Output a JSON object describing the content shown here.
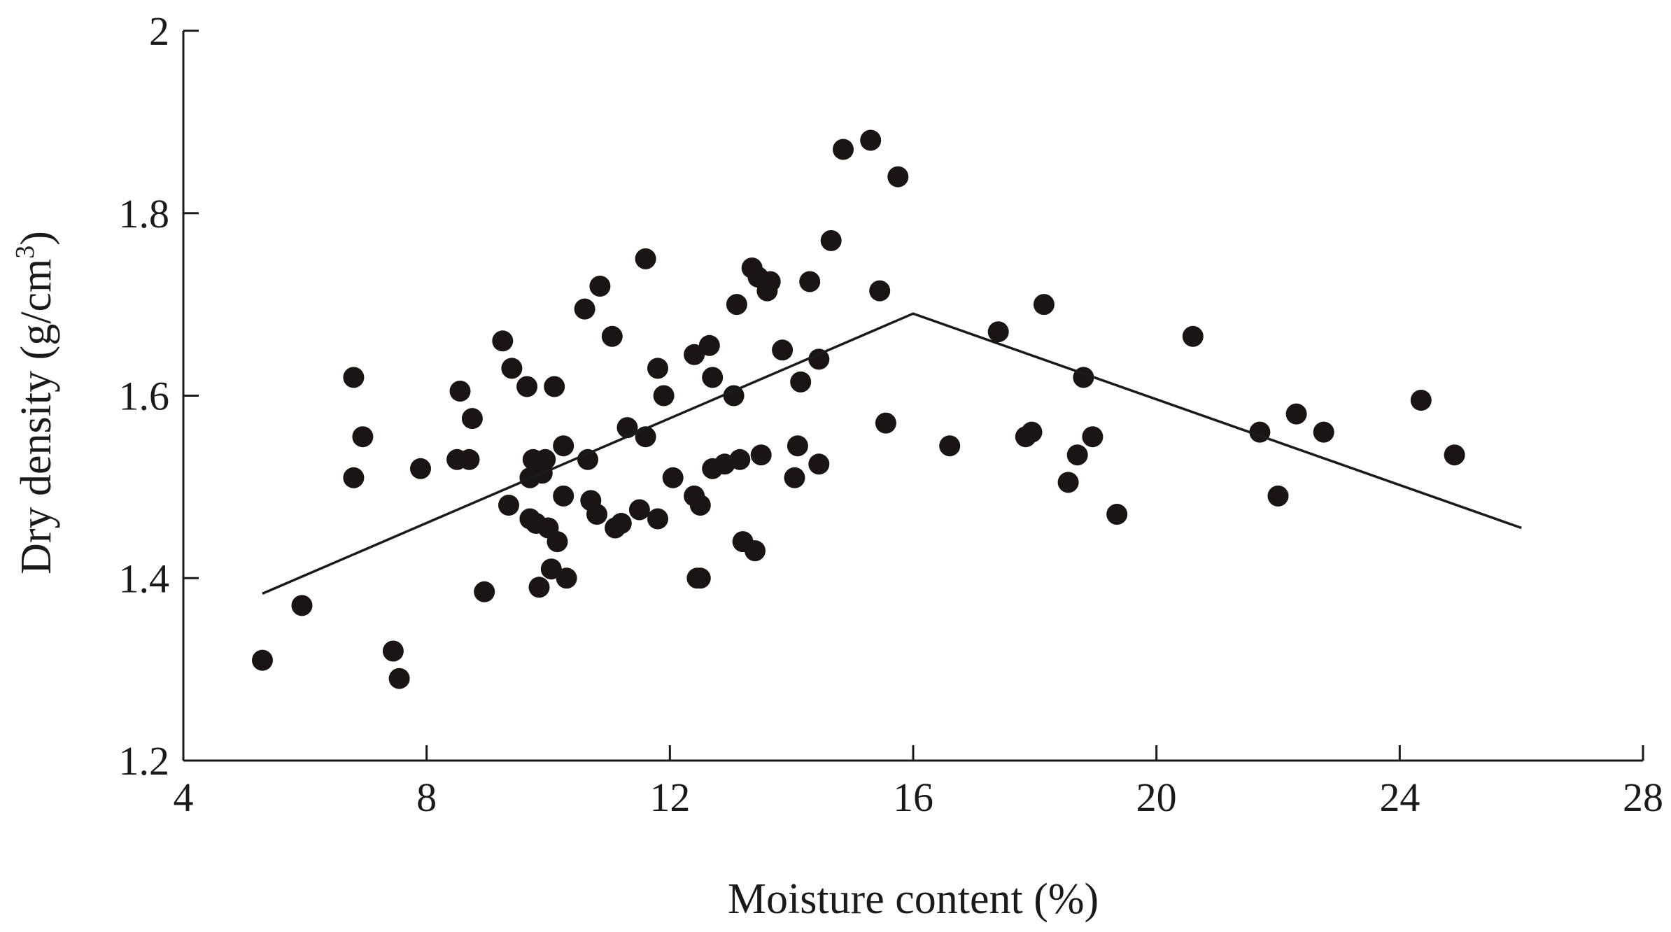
{
  "chart_data": {
    "type": "scatter",
    "xlabel": "Moisture content (%)",
    "ylabel": "Dry density (g/cm3)",
    "ylabel_main": "Dry density (g/cm",
    "ylabel_sup": "3",
    "ylabel_end": ")",
    "xlim": [
      4,
      28
    ],
    "ylim": [
      1.2,
      2.0
    ],
    "xticks": [
      4,
      8,
      12,
      16,
      20,
      24,
      28
    ],
    "yticks": [
      1.2,
      1.4,
      1.6,
      1.8,
      2.0
    ],
    "xtick_labels": [
      "4",
      "8",
      "12",
      "16",
      "20",
      "24",
      "28"
    ],
    "ytick_labels": [
      "1.2",
      "1.4",
      "1.6",
      "1.8",
      "2"
    ],
    "grid": false,
    "legend": "none",
    "marker_color": "#1a1513",
    "points": [
      [
        5.3,
        1.31
      ],
      [
        5.95,
        1.37
      ],
      [
        6.8,
        1.62
      ],
      [
        6.8,
        1.51
      ],
      [
        6.95,
        1.555
      ],
      [
        7.45,
        1.32
      ],
      [
        7.55,
        1.29
      ],
      [
        7.9,
        1.52
      ],
      [
        8.5,
        1.53
      ],
      [
        8.55,
        1.605
      ],
      [
        8.7,
        1.53
      ],
      [
        8.75,
        1.575
      ],
      [
        8.95,
        1.385
      ],
      [
        9.25,
        1.66
      ],
      [
        9.35,
        1.48
      ],
      [
        9.4,
        1.63
      ],
      [
        9.65,
        1.61
      ],
      [
        9.7,
        1.51
      ],
      [
        9.7,
        1.465
      ],
      [
        9.75,
        1.53
      ],
      [
        9.8,
        1.46
      ],
      [
        9.85,
        1.39
      ],
      [
        9.9,
        1.515
      ],
      [
        9.95,
        1.53
      ],
      [
        10.0,
        1.455
      ],
      [
        10.05,
        1.41
      ],
      [
        10.1,
        1.61
      ],
      [
        10.15,
        1.44
      ],
      [
        10.25,
        1.545
      ],
      [
        10.25,
        1.49
      ],
      [
        10.3,
        1.4
      ],
      [
        10.6,
        1.695
      ],
      [
        10.65,
        1.53
      ],
      [
        10.7,
        1.485
      ],
      [
        10.8,
        1.47
      ],
      [
        10.85,
        1.72
      ],
      [
        11.05,
        1.665
      ],
      [
        11.1,
        1.455
      ],
      [
        11.2,
        1.46
      ],
      [
        11.3,
        1.565
      ],
      [
        11.5,
        1.475
      ],
      [
        11.6,
        1.75
      ],
      [
        11.6,
        1.555
      ],
      [
        11.8,
        1.465
      ],
      [
        11.8,
        1.63
      ],
      [
        11.9,
        1.6
      ],
      [
        12.05,
        1.51
      ],
      [
        12.4,
        1.645
      ],
      [
        12.4,
        1.49
      ],
      [
        12.45,
        1.4
      ],
      [
        12.5,
        1.48
      ],
      [
        12.5,
        1.4
      ],
      [
        12.65,
        1.655
      ],
      [
        12.7,
        1.52
      ],
      [
        12.7,
        1.62
      ],
      [
        12.9,
        1.525
      ],
      [
        13.05,
        1.6
      ],
      [
        13.1,
        1.7
      ],
      [
        13.15,
        1.53
      ],
      [
        13.2,
        1.44
      ],
      [
        13.35,
        1.74
      ],
      [
        13.4,
        1.43
      ],
      [
        13.45,
        1.73
      ],
      [
        13.5,
        1.535
      ],
      [
        13.6,
        1.715
      ],
      [
        13.65,
        1.725
      ],
      [
        13.85,
        1.65
      ],
      [
        14.05,
        1.51
      ],
      [
        14.1,
        1.545
      ],
      [
        14.15,
        1.615
      ],
      [
        14.3,
        1.725
      ],
      [
        14.45,
        1.525
      ],
      [
        14.45,
        1.64
      ],
      [
        14.65,
        1.77
      ],
      [
        14.85,
        1.87
      ],
      [
        15.3,
        1.88
      ],
      [
        15.45,
        1.715
      ],
      [
        15.55,
        1.57
      ],
      [
        15.75,
        1.84
      ],
      [
        16.6,
        1.545
      ],
      [
        17.4,
        1.67
      ],
      [
        17.85,
        1.555
      ],
      [
        17.95,
        1.56
      ],
      [
        18.15,
        1.7
      ],
      [
        18.55,
        1.505
      ],
      [
        18.7,
        1.535
      ],
      [
        18.8,
        1.62
      ],
      [
        18.95,
        1.555
      ],
      [
        19.35,
        1.47
      ],
      [
        20.6,
        1.665
      ],
      [
        21.7,
        1.56
      ],
      [
        22.0,
        1.49
      ],
      [
        22.3,
        1.58
      ],
      [
        22.75,
        1.56
      ],
      [
        24.35,
        1.595
      ],
      [
        24.9,
        1.535
      ]
    ],
    "fit_line": {
      "x": [
        5.3,
        16.0,
        26.0
      ],
      "y": [
        1.383,
        1.69,
        1.455
      ]
    }
  }
}
